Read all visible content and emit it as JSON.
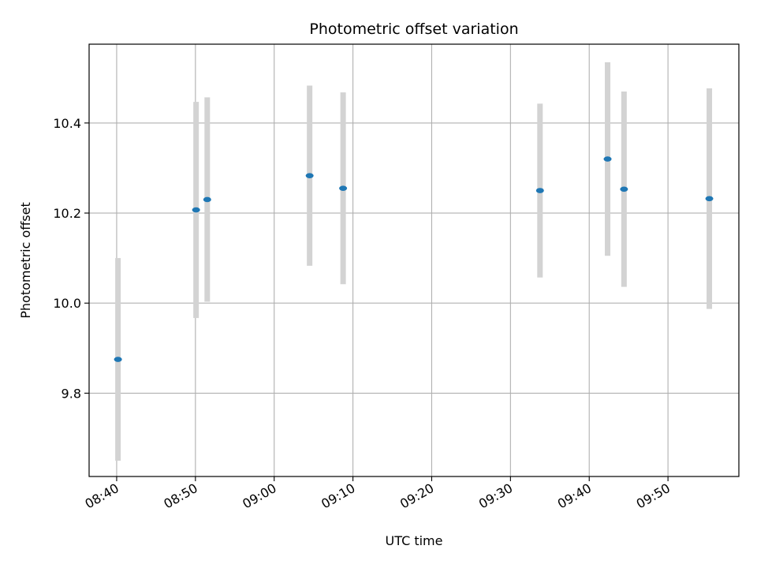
{
  "chart_data": {
    "type": "scatter",
    "title": "Photometric offset variation",
    "xlabel": "UTC time",
    "ylabel": "Photometric offset",
    "xlim": [
      "08:36.5",
      "09:59"
    ],
    "ylim": [
      9.615,
      10.575
    ],
    "x_ticks": [
      "08:40",
      "08:50",
      "09:00",
      "09:10",
      "09:20",
      "09:30",
      "09:40",
      "09:50"
    ],
    "y_ticks": [
      9.8,
      10.0,
      10.2,
      10.4
    ],
    "grid": true,
    "legend": "none",
    "point_color": "#1f77b4",
    "errorbar_color": "#d3d3d3",
    "points": [
      {
        "x": "08:40:10",
        "y": 9.875,
        "err": 0.225
      },
      {
        "x": "08:50:05",
        "y": 10.207,
        "err": 0.24
      },
      {
        "x": "08:51:30",
        "y": 10.23,
        "err": 0.227
      },
      {
        "x": "09:04:30",
        "y": 10.283,
        "err": 0.2
      },
      {
        "x": "09:08:45",
        "y": 10.255,
        "err": 0.213
      },
      {
        "x": "09:33:45",
        "y": 10.25,
        "err": 0.193
      },
      {
        "x": "09:42:20",
        "y": 10.32,
        "err": 0.215
      },
      {
        "x": "09:44:25",
        "y": 10.253,
        "err": 0.217
      },
      {
        "x": "09:55:15",
        "y": 10.232,
        "err": 0.245
      }
    ]
  }
}
